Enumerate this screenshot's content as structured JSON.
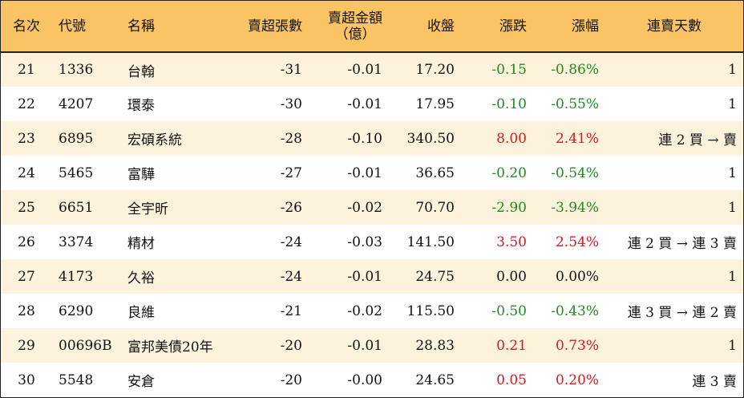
{
  "headers": {
    "rank": "名次",
    "code": "代號",
    "name": "名稱",
    "sell_lots": "賣超張數",
    "sell_amount_line1": "賣超金額",
    "sell_amount_line2": "（億）",
    "close": "收盤",
    "change": "漲跌",
    "pct": "漲幅",
    "streak": "連賣天數"
  },
  "rows": [
    {
      "rank": "21",
      "code": "1336",
      "name": "台翰",
      "sell_lots": "-31",
      "sell_amount": "-0.01",
      "close": "17.20",
      "change": "-0.15",
      "pct": "-0.86%",
      "streak": "1",
      "dir": "down"
    },
    {
      "rank": "22",
      "code": "4207",
      "name": "環泰",
      "sell_lots": "-30",
      "sell_amount": "-0.01",
      "close": "17.95",
      "change": "-0.10",
      "pct": "-0.55%",
      "streak": "1",
      "dir": "down"
    },
    {
      "rank": "23",
      "code": "6895",
      "name": "宏碩系統",
      "sell_lots": "-28",
      "sell_amount": "-0.10",
      "close": "340.50",
      "change": "8.00",
      "pct": "2.41%",
      "streak": "連 2 買 → 賣",
      "dir": "up"
    },
    {
      "rank": "24",
      "code": "5465",
      "name": "富驊",
      "sell_lots": "-27",
      "sell_amount": "-0.01",
      "close": "36.65",
      "change": "-0.20",
      "pct": "-0.54%",
      "streak": "1",
      "dir": "down"
    },
    {
      "rank": "25",
      "code": "6651",
      "name": "全宇昕",
      "sell_lots": "-26",
      "sell_amount": "-0.02",
      "close": "70.70",
      "change": "-2.90",
      "pct": "-3.94%",
      "streak": "1",
      "dir": "down"
    },
    {
      "rank": "26",
      "code": "3374",
      "name": "精材",
      "sell_lots": "-24",
      "sell_amount": "-0.03",
      "close": "141.50",
      "change": "3.50",
      "pct": "2.54%",
      "streak": "連 2 買 → 連 3 賣",
      "dir": "up"
    },
    {
      "rank": "27",
      "code": "4173",
      "name": "久裕",
      "sell_lots": "-24",
      "sell_amount": "-0.01",
      "close": "24.75",
      "change": "0.00",
      "pct": "0.00%",
      "streak": "1",
      "dir": "flat"
    },
    {
      "rank": "28",
      "code": "6290",
      "name": "良維",
      "sell_lots": "-21",
      "sell_amount": "-0.02",
      "close": "115.50",
      "change": "-0.50",
      "pct": "-0.43%",
      "streak": "連 3 買 → 連 2 賣",
      "dir": "down"
    },
    {
      "rank": "29",
      "code": "00696B",
      "name": "富邦美債20年",
      "sell_lots": "-20",
      "sell_amount": "-0.01",
      "close": "28.83",
      "change": "0.21",
      "pct": "0.73%",
      "streak": "1",
      "dir": "up"
    },
    {
      "rank": "30",
      "code": "5548",
      "name": "安倉",
      "sell_lots": "-20",
      "sell_amount": "-0.00",
      "close": "24.65",
      "change": "0.05",
      "pct": "0.20%",
      "streak": "連 3 賣",
      "dir": "up"
    }
  ],
  "colors": {
    "header_bg": "#fac464",
    "stripe_bg": "#fdf3dc",
    "up": "#e0141e",
    "down": "#1f8a1f"
  }
}
